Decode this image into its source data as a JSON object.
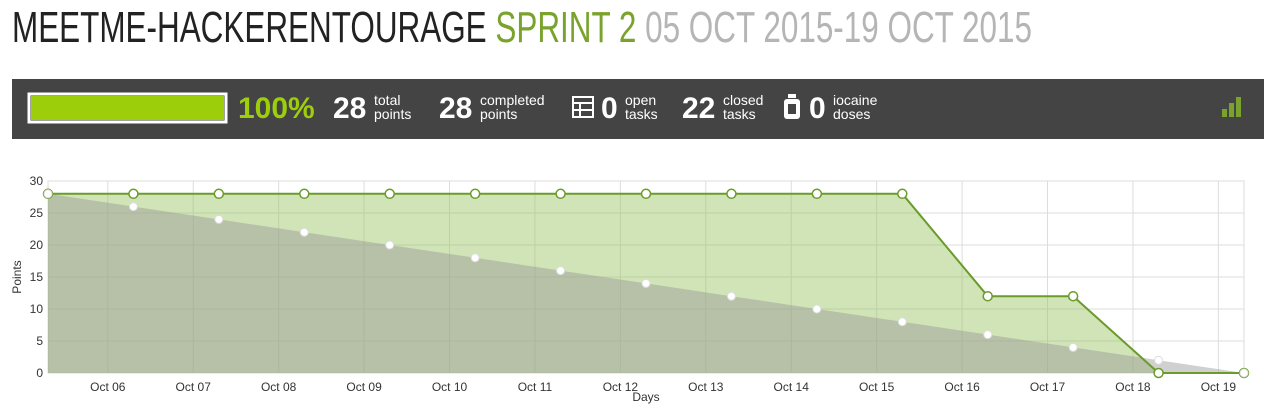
{
  "header": {
    "project": "MEETME-HACKERENTOURAGE",
    "sprint": "SPRINT 2",
    "dates": "05 OCT 2015-19 OCT 2015"
  },
  "stats": {
    "progress": {
      "value": 100,
      "label": "100%"
    },
    "items": [
      {
        "value": "28",
        "lines": [
          "total",
          "points"
        ]
      },
      {
        "value": "28",
        "lines": [
          "completed",
          "points"
        ]
      },
      {
        "value": "0",
        "lines": [
          "open",
          "tasks"
        ]
      },
      {
        "value": "22",
        "lines": [
          "closed",
          "tasks"
        ]
      },
      {
        "value": "0",
        "lines": [
          "iocaine",
          "doses"
        ]
      }
    ]
  },
  "chart_data": {
    "type": "area",
    "x_label": "Days",
    "y_label": "Points",
    "x": [
      0,
      1,
      2,
      3,
      4,
      5,
      6,
      7,
      8,
      9,
      10,
      11,
      12,
      13,
      14
    ],
    "series": [
      {
        "color": "#6a9b2b",
        "values": [
          28,
          28,
          28,
          28,
          28,
          28,
          28,
          28,
          28,
          28,
          28,
          12,
          12,
          0,
          0
        ]
      },
      {
        "color": "#a8a8a8",
        "values": [
          28,
          26,
          24,
          22,
          20,
          18,
          16,
          14,
          12,
          10,
          8,
          6,
          4,
          2,
          0
        ]
      }
    ],
    "xlim": [
      0,
      14
    ],
    "xticks": [
      {
        "value": 0.7,
        "label": "Oct 06"
      },
      {
        "value": 1.7,
        "label": "Oct 07"
      },
      {
        "value": 2.7,
        "label": "Oct 08"
      },
      {
        "value": 3.7,
        "label": "Oct 09"
      },
      {
        "value": 4.7,
        "label": "Oct 10"
      },
      {
        "value": 5.7,
        "label": "Oct 11"
      },
      {
        "value": 6.7,
        "label": "Oct 12"
      },
      {
        "value": 7.7,
        "label": "Oct 13"
      },
      {
        "value": 8.7,
        "label": "Oct 14"
      },
      {
        "value": 9.7,
        "label": "Oct 15"
      },
      {
        "value": 10.7,
        "label": "Oct 16"
      },
      {
        "value": 11.7,
        "label": "Oct 17"
      },
      {
        "value": 12.7,
        "label": "Oct 18"
      },
      {
        "value": 13.7,
        "label": "Oct 19"
      }
    ],
    "ylim": [
      0,
      30
    ],
    "yticks": [
      0,
      5,
      10,
      15,
      20,
      25,
      30
    ],
    "grid": true
  }
}
